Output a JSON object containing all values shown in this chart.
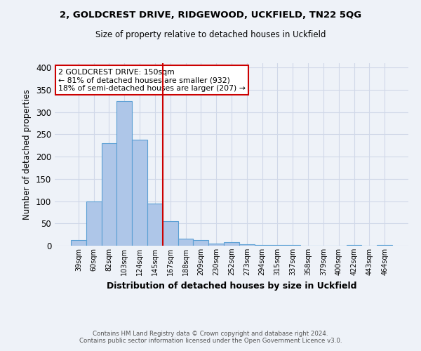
{
  "title1": "2, GOLDCREST DRIVE, RIDGEWOOD, UCKFIELD, TN22 5QG",
  "title2": "Size of property relative to detached houses in Uckfield",
  "xlabel": "Distribution of detached houses by size in Uckfield",
  "ylabel": "Number of detached properties",
  "bar_labels": [
    "39sqm",
    "60sqm",
    "82sqm",
    "103sqm",
    "124sqm",
    "145sqm",
    "167sqm",
    "188sqm",
    "209sqm",
    "230sqm",
    "252sqm",
    "273sqm",
    "294sqm",
    "315sqm",
    "337sqm",
    "358sqm",
    "379sqm",
    "400sqm",
    "422sqm",
    "443sqm",
    "464sqm"
  ],
  "bar_values": [
    13,
    100,
    230,
    325,
    238,
    95,
    55,
    15,
    13,
    5,
    8,
    3,
    2,
    1,
    1,
    0,
    0,
    0,
    2,
    0,
    2
  ],
  "bar_color": "#aec6e8",
  "bar_edgecolor": "#5a9fd4",
  "vline_x": 5.5,
  "vline_color": "#cc0000",
  "annotation_title": "2 GOLDCREST DRIVE: 150sqm",
  "annotation_line1": "← 81% of detached houses are smaller (932)",
  "annotation_line2": "18% of semi-detached houses are larger (207) →",
  "annotation_box_color": "#cc0000",
  "annotation_bg": "#ffffff",
  "ylim": [
    0,
    410
  ],
  "yticks": [
    0,
    50,
    100,
    150,
    200,
    250,
    300,
    350,
    400
  ],
  "grid_color": "#d0d8e8",
  "bg_color": "#eef2f8",
  "footer1": "Contains HM Land Registry data © Crown copyright and database right 2024.",
  "footer2": "Contains public sector information licensed under the Open Government Licence v3.0."
}
